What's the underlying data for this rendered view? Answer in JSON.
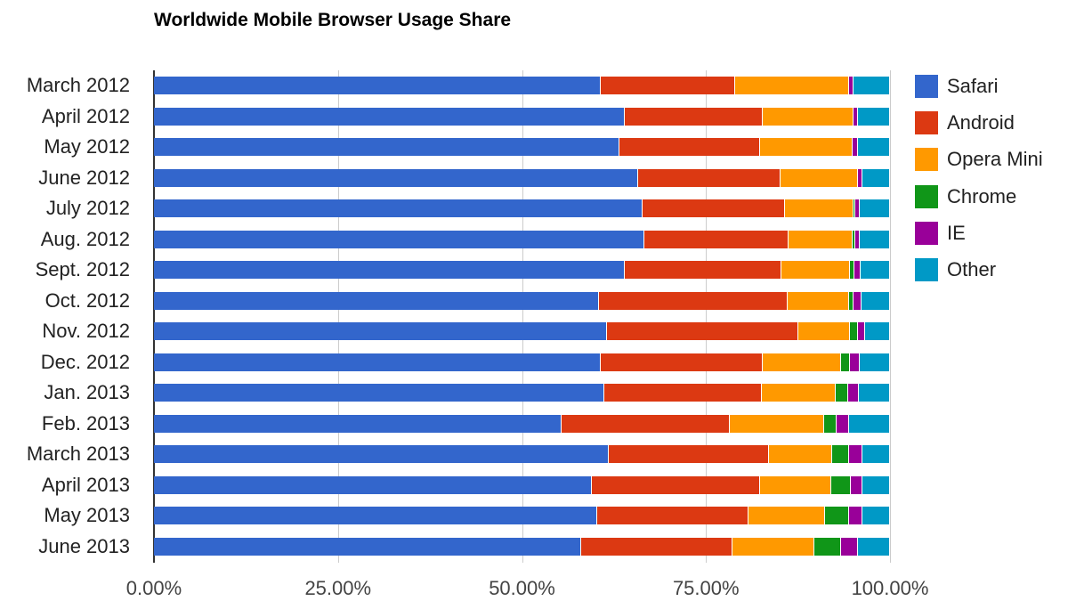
{
  "chart_data": {
    "type": "bar",
    "orientation": "horizontal",
    "stacked": true,
    "title": "Worldwide Mobile Browser Usage Share",
    "xlabel": "",
    "ylabel": "",
    "xlim": [
      0,
      100
    ],
    "x_ticks": [
      "0.00%",
      "25.00%",
      "50.00%",
      "75.00%",
      "100.00%"
    ],
    "grid": true,
    "legend_position": "right",
    "categories": [
      "March 2012",
      "April 2012",
      "May 2012",
      "June 2012",
      "July 2012",
      "Aug. 2012",
      "Sept. 2012",
      "Oct. 2012",
      "Nov. 2012",
      "Dec. 2012",
      "Jan. 2013",
      "Feb. 2013",
      "March 2013",
      "April 2013",
      "May 2013",
      "June 2013"
    ],
    "series": [
      {
        "name": "Safari",
        "color": "#3366cc",
        "values": [
          60.7,
          64.0,
          63.2,
          65.8,
          66.4,
          66.6,
          64.0,
          60.4,
          61.5,
          60.7,
          61.2,
          55.4,
          61.8,
          59.5,
          60.2,
          58.0
        ]
      },
      {
        "name": "Android",
        "color": "#dc3912",
        "values": [
          18.3,
          18.7,
          19.2,
          19.3,
          19.3,
          19.6,
          21.2,
          25.7,
          26.1,
          22.0,
          21.4,
          22.8,
          21.8,
          22.9,
          20.6,
          20.6
        ]
      },
      {
        "name": "Opera Mini",
        "color": "#ff9900",
        "values": [
          15.5,
          12.3,
          12.5,
          10.5,
          9.4,
          8.7,
          9.4,
          8.3,
          6.9,
          10.6,
          10.0,
          12.8,
          8.6,
          9.6,
          10.4,
          11.1
        ]
      },
      {
        "name": "Chrome",
        "color": "#109618",
        "values": [
          0.0,
          0.0,
          0.0,
          0.0,
          0.2,
          0.4,
          0.6,
          0.6,
          1.1,
          1.3,
          1.7,
          1.8,
          2.3,
          2.7,
          3.2,
          3.7
        ]
      },
      {
        "name": "IE",
        "color": "#990099",
        "values": [
          0.5,
          0.6,
          0.8,
          0.6,
          0.6,
          0.6,
          0.8,
          1.1,
          1.0,
          1.3,
          1.5,
          1.7,
          1.8,
          1.6,
          1.8,
          2.3
        ]
      },
      {
        "name": "Other",
        "color": "#0099c6",
        "values": [
          5.0,
          4.4,
          4.3,
          3.8,
          4.1,
          4.1,
          4.0,
          3.9,
          3.4,
          4.1,
          4.2,
          5.5,
          3.7,
          3.7,
          3.8,
          4.3
        ]
      }
    ]
  }
}
